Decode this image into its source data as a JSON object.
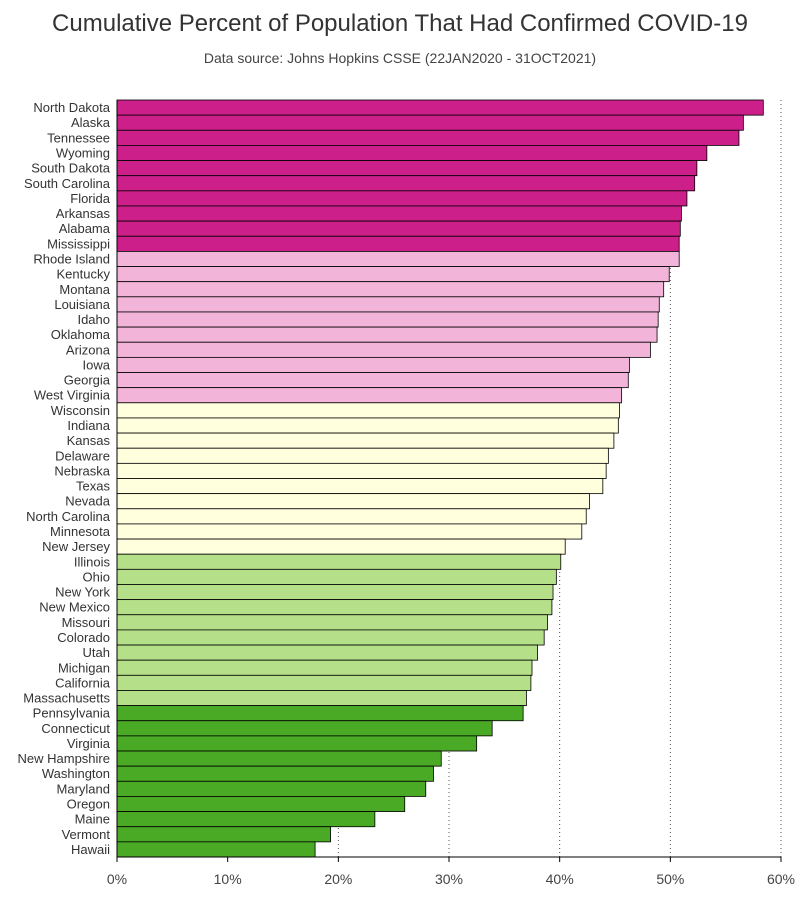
{
  "chart_data": {
    "type": "bar",
    "orientation": "horizontal",
    "title": "Cumulative Percent of Population That Had Confirmed COVID-19",
    "subtitle": "Data source: Johns Hopkins CSSE (22JAN2020 - 31OCT2021)",
    "xlabel": "",
    "ylabel": "",
    "xlim": [
      0,
      60
    ],
    "ticks": [
      "0%",
      "10%",
      "20%",
      "30%",
      "40%",
      "50%",
      "60%"
    ],
    "tick_values": [
      0,
      10,
      20,
      30,
      40,
      50,
      60
    ],
    "grid": "vertical dotted",
    "legend": "none",
    "group_colors": [
      "#cc1f8a",
      "#f2b4d8",
      "#ffffdd",
      "#b5e089",
      "#4aa925"
    ],
    "categories": [
      "North Dakota",
      "Alaska",
      "Tennessee",
      "Wyoming",
      "South Dakota",
      "South Carolina",
      "Florida",
      "Arkansas",
      "Alabama",
      "Mississippi",
      "Rhode Island",
      "Kentucky",
      "Montana",
      "Louisiana",
      "Idaho",
      "Oklahoma",
      "Arizona",
      "Iowa",
      "Georgia",
      "West Virginia",
      "Wisconsin",
      "Indiana",
      "Kansas",
      "Delaware",
      "Nebraska",
      "Texas",
      "Nevada",
      "North Carolina",
      "Minnesota",
      "New Jersey",
      "Illinois",
      "Ohio",
      "New York",
      "New Mexico",
      "Missouri",
      "Colorado",
      "Utah",
      "Michigan",
      "California",
      "Massachusetts",
      "Pennsylvania",
      "Connecticut",
      "Virginia",
      "New Hampshire",
      "Washington",
      "Maryland",
      "Oregon",
      "Maine",
      "Vermont",
      "Hawaii"
    ],
    "values": [
      58.4,
      56.6,
      56.2,
      53.3,
      52.4,
      52.2,
      51.5,
      51.0,
      50.9,
      50.8,
      50.8,
      49.9,
      49.4,
      49.0,
      48.9,
      48.8,
      48.2,
      46.3,
      46.2,
      45.6,
      45.4,
      45.3,
      44.9,
      44.4,
      44.2,
      43.9,
      42.7,
      42.4,
      42.0,
      40.5,
      40.1,
      39.7,
      39.4,
      39.3,
      38.9,
      38.6,
      38.0,
      37.5,
      37.4,
      37.0,
      36.7,
      33.9,
      32.5,
      29.3,
      28.6,
      27.9,
      26.0,
      23.3,
      19.3,
      17.9
    ],
    "groups": [
      0,
      0,
      0,
      0,
      0,
      0,
      0,
      0,
      0,
      0,
      1,
      1,
      1,
      1,
      1,
      1,
      1,
      1,
      1,
      1,
      2,
      2,
      2,
      2,
      2,
      2,
      2,
      2,
      2,
      2,
      3,
      3,
      3,
      3,
      3,
      3,
      3,
      3,
      3,
      3,
      4,
      4,
      4,
      4,
      4,
      4,
      4,
      4,
      4,
      4
    ]
  }
}
